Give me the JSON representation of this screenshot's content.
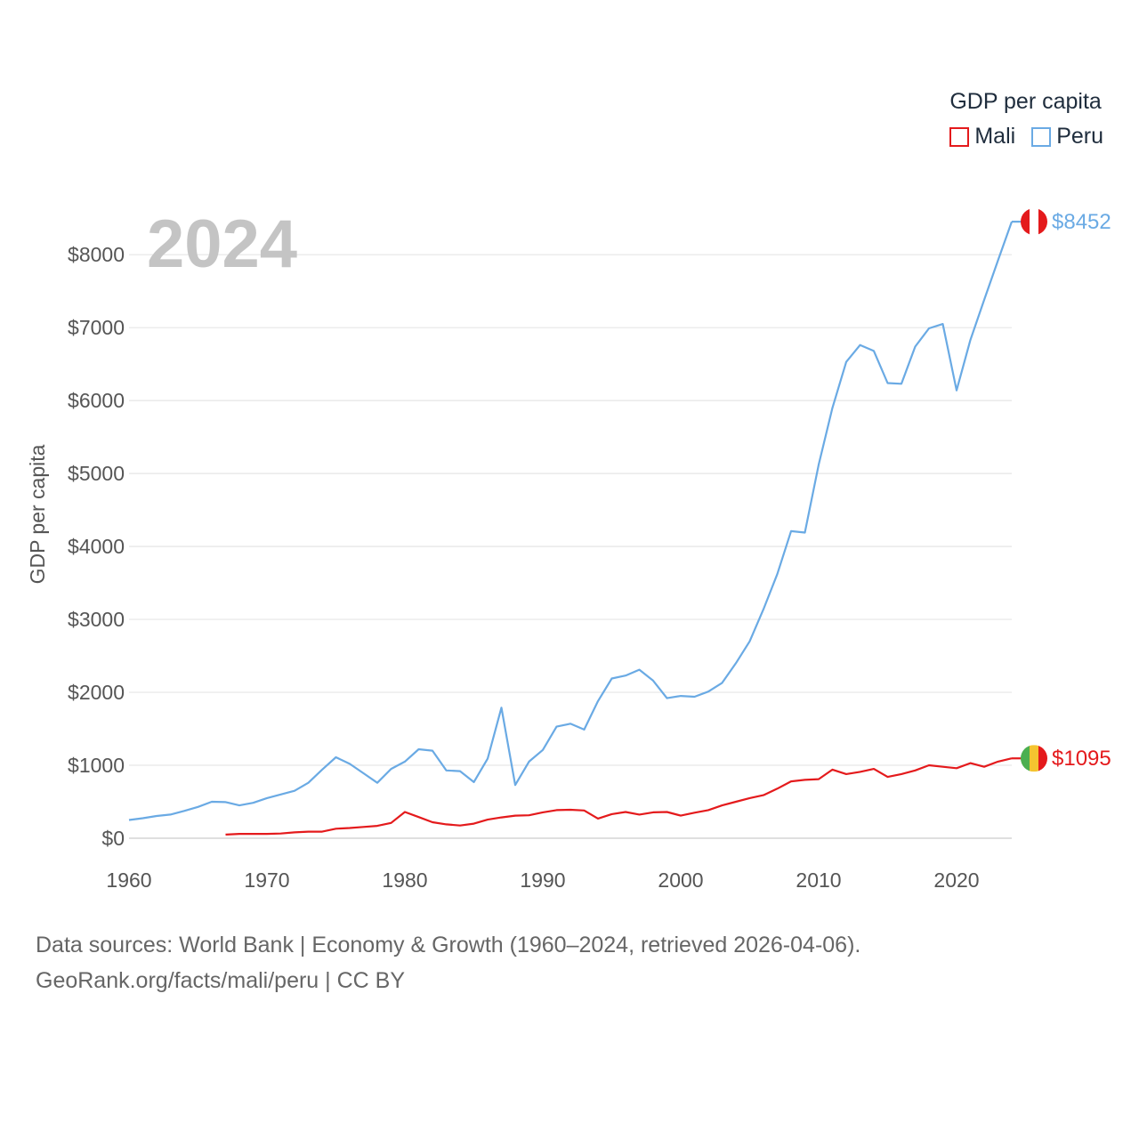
{
  "legend": {
    "title": "GDP per capita"
  },
  "year_label": "2024",
  "footer": {
    "line1": "Data sources: World Bank | Economy & Growth (1960–2024, retrieved 2026-04-06).",
    "line2": "GeoRank.org/facts/mali/peru | CC BY"
  },
  "chart_data": {
    "type": "line",
    "title": "",
    "xlabel": "",
    "ylabel": "GDP per capita",
    "xlim": [
      1960,
      2024
    ],
    "ylim": [
      0,
      8600
    ],
    "x_ticks": [
      1960,
      1970,
      1980,
      1990,
      2000,
      2010,
      2020
    ],
    "x_tick_labels": [
      "1960",
      "1970",
      "1980",
      "1990",
      "2000",
      "2010",
      "2020"
    ],
    "y_ticks": [
      0,
      1000,
      2000,
      3000,
      4000,
      5000,
      6000,
      7000,
      8000
    ],
    "y_tick_labels": [
      "$0",
      "$1000",
      "$2000",
      "$3000",
      "$4000",
      "$5000",
      "$6000",
      "$7000",
      "$8000"
    ],
    "grid": true,
    "legend_position": "top-right",
    "series": [
      {
        "name": "Mali",
        "color": "#e41a1c",
        "end_label": "$1095",
        "flag": "mali-flag-icon",
        "flag_colors": [
          "#4caf50",
          "#f4c430",
          "#e41a1c"
        ],
        "x": [
          1967,
          1968,
          1969,
          1970,
          1971,
          1972,
          1973,
          1974,
          1975,
          1976,
          1977,
          1978,
          1979,
          1980,
          1981,
          1982,
          1983,
          1984,
          1985,
          1986,
          1987,
          1988,
          1989,
          1990,
          1991,
          1992,
          1993,
          1994,
          1995,
          1996,
          1997,
          1998,
          1999,
          2000,
          2001,
          2002,
          2003,
          2004,
          2005,
          2006,
          2007,
          2008,
          2009,
          2010,
          2011,
          2012,
          2013,
          2014,
          2015,
          2016,
          2017,
          2018,
          2019,
          2020,
          2021,
          2022,
          2023,
          2024
        ],
        "values": [
          50,
          60,
          60,
          60,
          65,
          80,
          90,
          90,
          130,
          140,
          155,
          170,
          210,
          360,
          290,
          220,
          190,
          175,
          200,
          255,
          285,
          310,
          315,
          355,
          385,
          390,
          380,
          270,
          330,
          360,
          325,
          355,
          360,
          310,
          350,
          385,
          450,
          500,
          550,
          590,
          680,
          780,
          800,
          810,
          940,
          880,
          910,
          950,
          840,
          880,
          930,
          1000,
          980,
          960,
          1030,
          980,
          1050,
          1095
        ]
      },
      {
        "name": "Peru",
        "color": "#6aaae4",
        "end_label": "$8452",
        "flag": "peru-flag-icon",
        "flag_colors": [
          "#e41a1c",
          "#ffffff",
          "#e41a1c"
        ],
        "x": [
          1960,
          1961,
          1962,
          1963,
          1964,
          1965,
          1966,
          1967,
          1968,
          1969,
          1970,
          1971,
          1972,
          1973,
          1974,
          1975,
          1976,
          1977,
          1978,
          1979,
          1980,
          1981,
          1982,
          1983,
          1984,
          1985,
          1986,
          1987,
          1988,
          1989,
          1990,
          1991,
          1992,
          1993,
          1994,
          1995,
          1996,
          1997,
          1998,
          1999,
          2000,
          2001,
          2002,
          2003,
          2004,
          2005,
          2006,
          2007,
          2008,
          2009,
          2010,
          2011,
          2012,
          2013,
          2014,
          2015,
          2016,
          2017,
          2018,
          2019,
          2020,
          2021,
          2022,
          2023,
          2024
        ],
        "values": [
          250,
          275,
          305,
          325,
          375,
          430,
          500,
          495,
          450,
          485,
          550,
          600,
          650,
          760,
          940,
          1110,
          1020,
          890,
          760,
          950,
          1050,
          1220,
          1200,
          930,
          920,
          770,
          1090,
          1790,
          730,
          1050,
          1210,
          1530,
          1570,
          1490,
          1880,
          2190,
          2230,
          2310,
          2160,
          1920,
          1950,
          1940,
          2010,
          2130,
          2400,
          2700,
          3140,
          3620,
          4210,
          4190,
          5120,
          5900,
          6530,
          6760,
          6680,
          6240,
          6230,
          6740,
          6990,
          7050,
          6140,
          6830,
          7380,
          7920,
          8452
        ]
      }
    ]
  }
}
